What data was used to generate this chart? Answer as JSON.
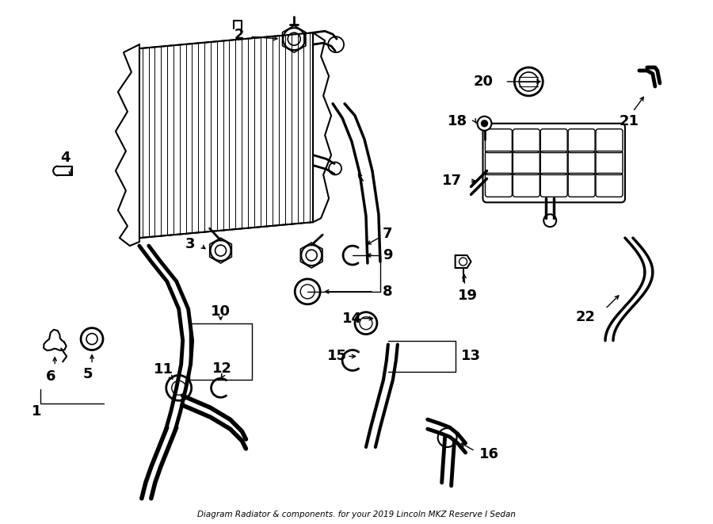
{
  "title": "Diagram Radiator & components. for your 2019 Lincoln MKZ Reserve I Sedan",
  "bg_color": "#ffffff",
  "line_color": "#000000",
  "fig_width": 9.0,
  "fig_height": 6.61,
  "dpi": 100
}
